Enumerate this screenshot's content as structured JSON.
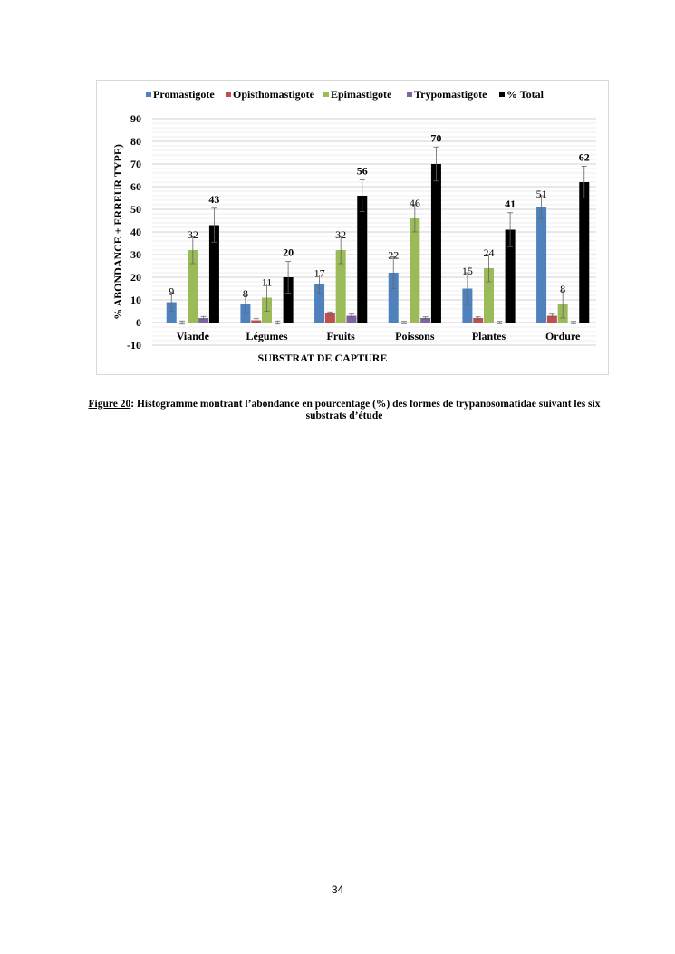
{
  "chart_data": {
    "type": "bar",
    "title": "",
    "xlabel": "SUBSTRAT DE CAPTURE",
    "ylabel": "% ABONDANCE ± ERREUR TYPE)",
    "ylim": [
      -10,
      90
    ],
    "yticks": [
      -10,
      0,
      10,
      20,
      30,
      40,
      50,
      60,
      70,
      80,
      90
    ],
    "grid": true,
    "legend_position": "top",
    "categories": [
      "Viande",
      "Légumes",
      "Fruits",
      "Poissons",
      "Plantes",
      "Ordure"
    ],
    "series": [
      {
        "name": "Promastigote",
        "color": "#4f81bd",
        "values": [
          9,
          8,
          17,
          22,
          15,
          51
        ],
        "errors": [
          4,
          4,
          4,
          7,
          7,
          5
        ],
        "labels": [
          "9",
          "8",
          "17",
          "22",
          "15",
          "51"
        ],
        "bold": false
      },
      {
        "name": "Opisthomastigote",
        "color": "#c0504d",
        "values": [
          0,
          1,
          4,
          0,
          2,
          3
        ],
        "errors": [
          0.7,
          0.7,
          0.7,
          0.5,
          0.5,
          0.7
        ],
        "labels": [
          "",
          "",
          "",
          "",
          "",
          ""
        ],
        "bold": false
      },
      {
        "name": "Epimastigote",
        "color": "#9bbb59",
        "values": [
          32,
          11,
          32,
          46,
          24,
          8
        ],
        "errors": [
          6,
          6,
          6,
          6,
          6,
          6
        ],
        "labels": [
          "32",
          "11",
          "32",
          "46",
          "24",
          "8"
        ],
        "bold": false
      },
      {
        "name": "Trypomastigote",
        "color": "#8064a2",
        "values": [
          2,
          0,
          3,
          2,
          0,
          0
        ],
        "errors": [
          0.7,
          0.7,
          0.7,
          0.5,
          0.5,
          0.5
        ],
        "labels": [
          "",
          "",
          "",
          "",
          "",
          ""
        ],
        "bold": false
      },
      {
        "name": "% Total",
        "color": "#000000",
        "values": [
          43,
          20,
          56,
          70,
          41,
          62
        ],
        "errors": [
          7.5,
          7,
          7,
          7.5,
          7.5,
          7
        ],
        "labels": [
          "43",
          "20",
          "56",
          "70",
          "41",
          "62"
        ],
        "bold": true
      }
    ]
  },
  "caption": {
    "figure_label": "Figure 20",
    "text": ": Histogramme montrant l’abondance en pourcentage (%) des formes de trypanosomatidae suivant les six substrats d’étude"
  },
  "page_number": "34"
}
